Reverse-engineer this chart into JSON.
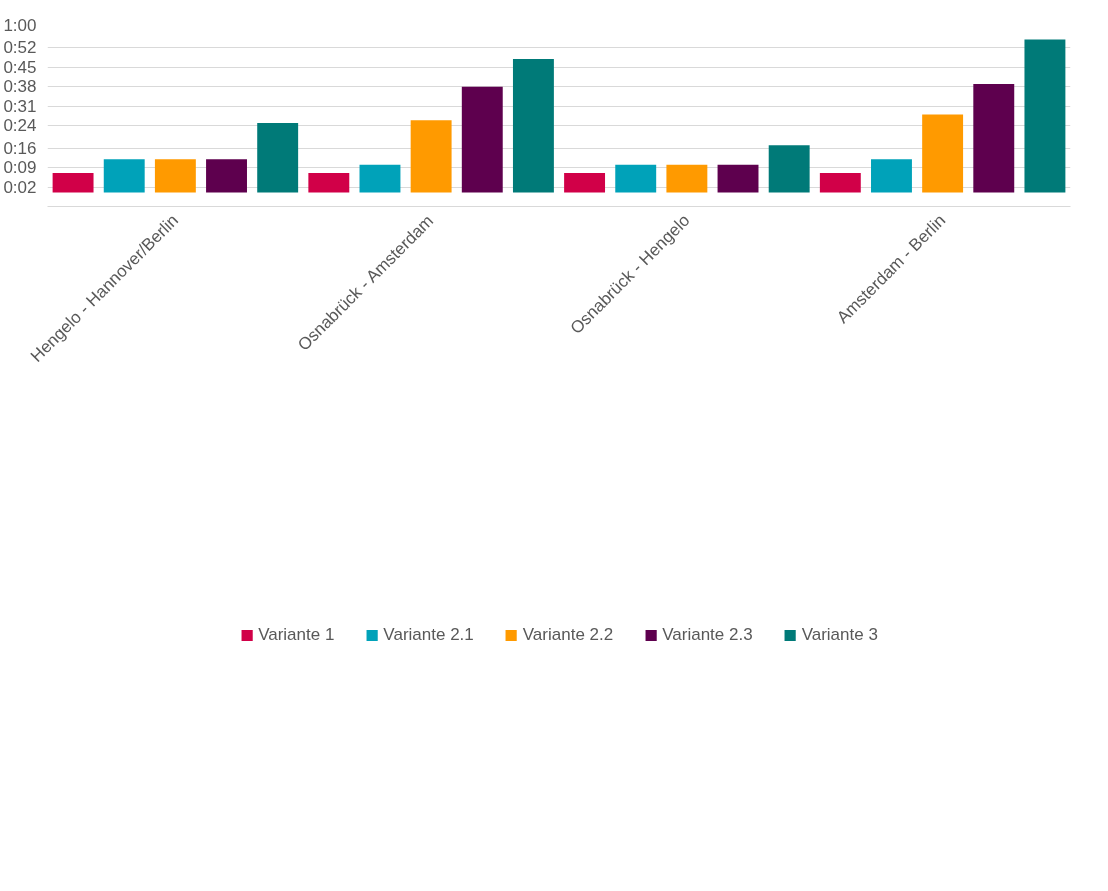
{
  "chart_data": {
    "type": "bar",
    "categories": [
      "Hengelo - Hannover/Berlin",
      "Osnabrück - Amsterdam",
      "Osnabrück - Hengelo",
      "Amsterdam - Berlin"
    ],
    "series": [
      {
        "name": "Variante 1",
        "color": "#d10048",
        "values": [
          7,
          7,
          7,
          7
        ]
      },
      {
        "name": "Variante 2.1",
        "color": "#00a2b9",
        "values": [
          12,
          10,
          10,
          12
        ]
      },
      {
        "name": "Variante 2.2",
        "color": "#ff9a00",
        "values": [
          12,
          26,
          10,
          28
        ]
      },
      {
        "name": "Variante 2.3",
        "color": "#5e004e",
        "values": [
          12,
          38,
          10,
          39
        ]
      },
      {
        "name": "Variante 3",
        "color": "#007a78",
        "values": [
          25,
          48,
          17,
          55
        ]
      }
    ],
    "ylim": [
      -5,
      60
    ],
    "yticks": [
      {
        "value": -5,
        "label": null
      },
      {
        "value": 2,
        "label": "0:02"
      },
      {
        "value": 9,
        "label": "0:09"
      },
      {
        "value": 16,
        "label": "0:16"
      },
      {
        "value": 24,
        "label": "0:24"
      },
      {
        "value": 31,
        "label": "0:31"
      },
      {
        "value": 38,
        "label": "0:38"
      },
      {
        "value": 45,
        "label": "0:45"
      },
      {
        "value": 52,
        "label": "0:52"
      },
      {
        "value": 60,
        "label": "1:00"
      }
    ],
    "grid": "y",
    "legend": "bottom"
  }
}
